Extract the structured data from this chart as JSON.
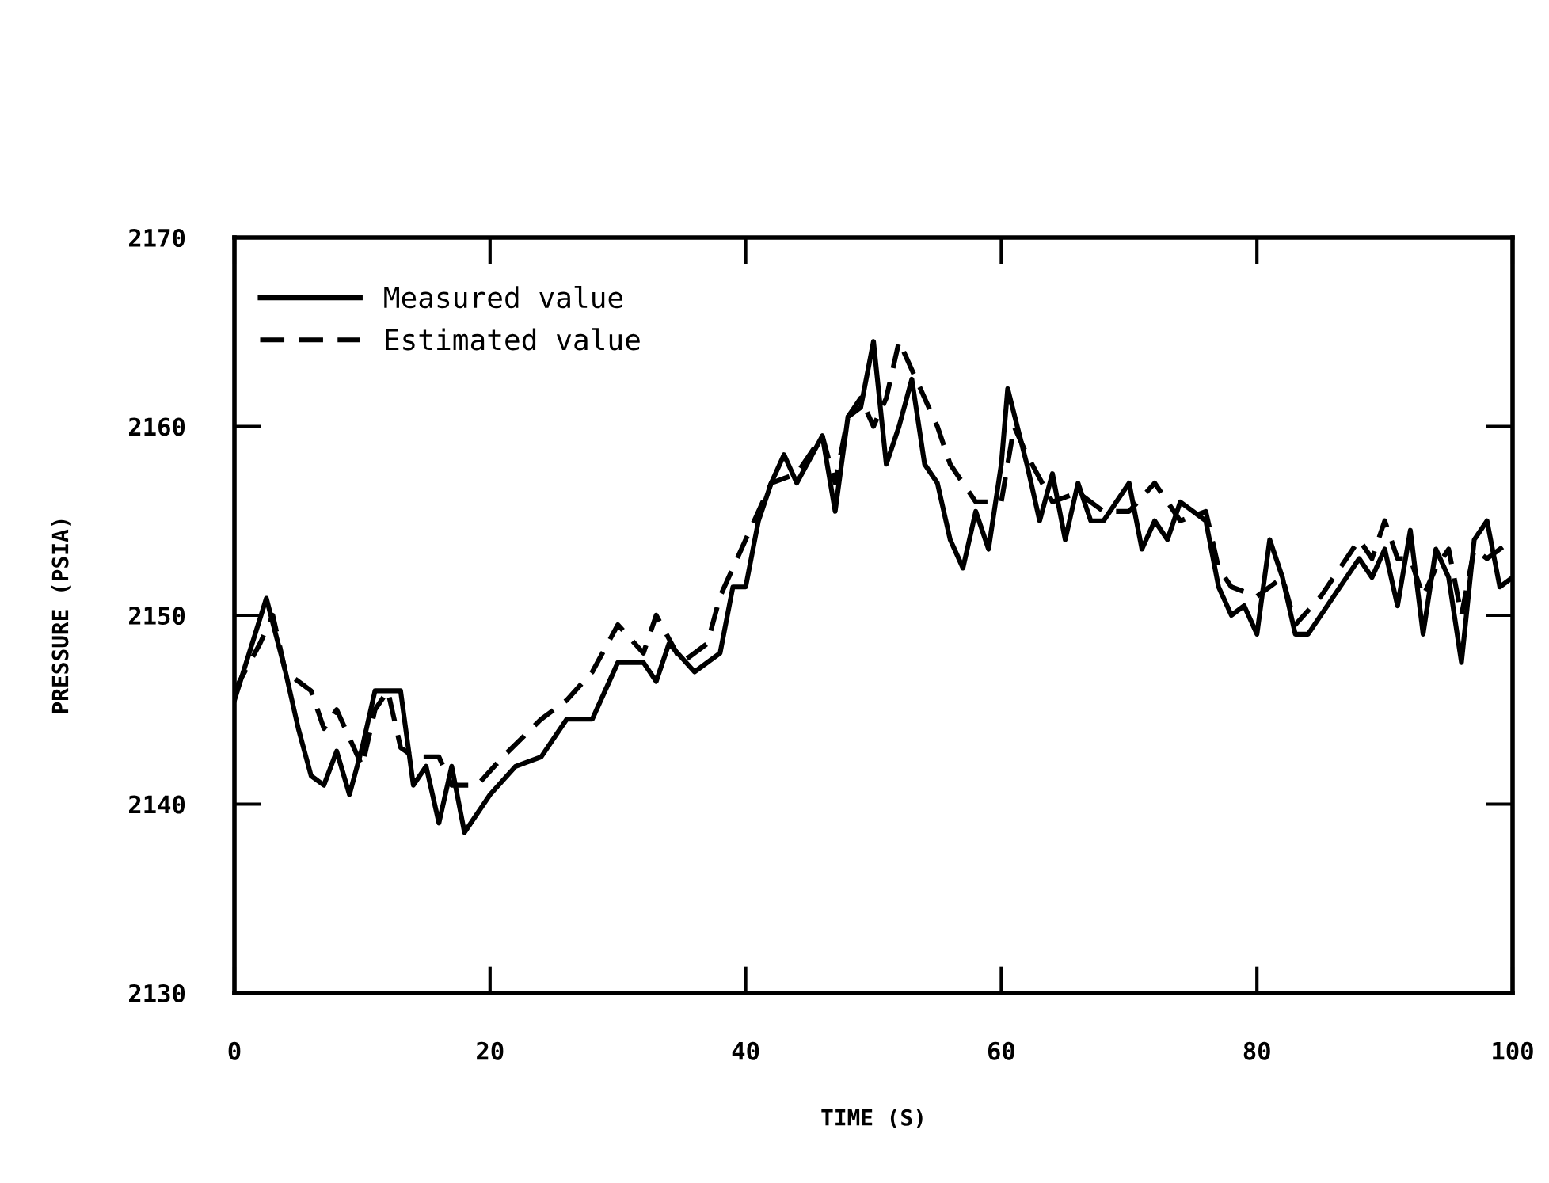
{
  "chart_data": {
    "type": "line",
    "xlabel": "TIME (S)",
    "ylabel": "PRESSURE (PSIA)",
    "xlim": [
      0,
      100
    ],
    "ylim": [
      2130,
      2170
    ],
    "xticks": [
      0,
      20,
      40,
      60,
      80,
      100
    ],
    "yticks": [
      2130,
      2140,
      2150,
      2160,
      2170
    ],
    "grid": false,
    "legend": "top left",
    "marker": "none",
    "series": [
      {
        "name": "Measured value",
        "color": "#000000",
        "line_style": "solid",
        "x": [
          0,
          2.5,
          4,
          5,
          6,
          7,
          8,
          9,
          10,
          11,
          13,
          14,
          15,
          16,
          17,
          18,
          20,
          22,
          24,
          26,
          28,
          30,
          32,
          33,
          34,
          36,
          38,
          39,
          40,
          41,
          42,
          43,
          44,
          46,
          47,
          48,
          49,
          50,
          51,
          52,
          53,
          54,
          55,
          56,
          57,
          58,
          59,
          60,
          60.5,
          62,
          63,
          64,
          65,
          66,
          67,
          68,
          70,
          71,
          72,
          73,
          74,
          75,
          76,
          77,
          78,
          79,
          80,
          81,
          82,
          83,
          84,
          86,
          88,
          89,
          90,
          91,
          92,
          93,
          94,
          95,
          96,
          97,
          98,
          99,
          100
        ],
        "values": [
          2145.5,
          2150.9,
          2147,
          2144,
          2141.5,
          2141,
          2142.8,
          2140.5,
          2143,
          2146,
          2146,
          2141,
          2142,
          2139,
          2142,
          2138.5,
          2140.5,
          2142,
          2142.5,
          2144.5,
          2144.5,
          2147.5,
          2147.5,
          2146.5,
          2148.5,
          2147,
          2148,
          2151.5,
          2151.5,
          2155,
          2157,
          2158.5,
          2157,
          2159.5,
          2155.5,
          2160.5,
          2161,
          2164.5,
          2158,
          2160,
          2162.5,
          2158,
          2157,
          2154,
          2152.5,
          2155.5,
          2153.5,
          2158,
          2162,
          2158,
          2155,
          2157.5,
          2154,
          2157,
          2155,
          2155,
          2157,
          2153.5,
          2155,
          2154,
          2156,
          2155.5,
          2155,
          2151.5,
          2150,
          2150.5,
          2149,
          2154,
          2152,
          2149,
          2149,
          2151,
          2153,
          2152,
          2153.5,
          2150.5,
          2154.5,
          2149,
          2153.5,
          2152,
          2147.5,
          2154,
          2155,
          2151.5,
          2152
        ]
      },
      {
        "name": "Estimated value",
        "color": "#000000",
        "line_style": "dashed",
        "x": [
          0,
          2,
          3,
          4,
          6,
          7,
          8,
          9,
          10,
          11,
          12,
          13,
          14,
          16,
          17,
          19,
          21,
          24,
          26,
          28,
          30,
          32,
          33,
          35,
          37,
          38,
          40,
          42,
          44,
          46,
          47,
          48,
          49,
          50,
          51,
          52,
          53,
          55,
          56,
          58,
          60,
          61,
          62,
          64,
          66,
          68,
          70,
          72,
          74,
          76,
          77,
          78,
          80,
          82,
          83,
          85,
          86,
          87,
          88,
          89,
          90,
          91,
          92,
          93,
          94,
          95,
          96,
          97,
          98,
          100
        ],
        "values": [
          2146,
          2148.5,
          2150,
          2147,
          2146,
          2144,
          2145,
          2143.5,
          2142,
          2145,
          2146,
          2143,
          2142.5,
          2142.5,
          2141,
          2141,
          2142.5,
          2144.5,
          2145.5,
          2147,
          2149.5,
          2148,
          2150,
          2147.5,
          2148.5,
          2151,
          2154,
          2157,
          2157.5,
          2159.5,
          2157,
          2160.5,
          2161.5,
          2160,
          2161.5,
          2164.5,
          2163,
          2160,
          2158,
          2156,
          2156,
          2160,
          2158.5,
          2156,
          2156.5,
          2155.5,
          2155.5,
          2157,
          2155,
          2155.5,
          2152.5,
          2151.5,
          2151,
          2152,
          2149.5,
          2151,
          2152,
          2153,
          2154,
          2153,
          2155,
          2153,
          2153,
          2151,
          2152.5,
          2153.5,
          2150,
          2153.5,
          2153,
          2154
        ]
      }
    ]
  }
}
